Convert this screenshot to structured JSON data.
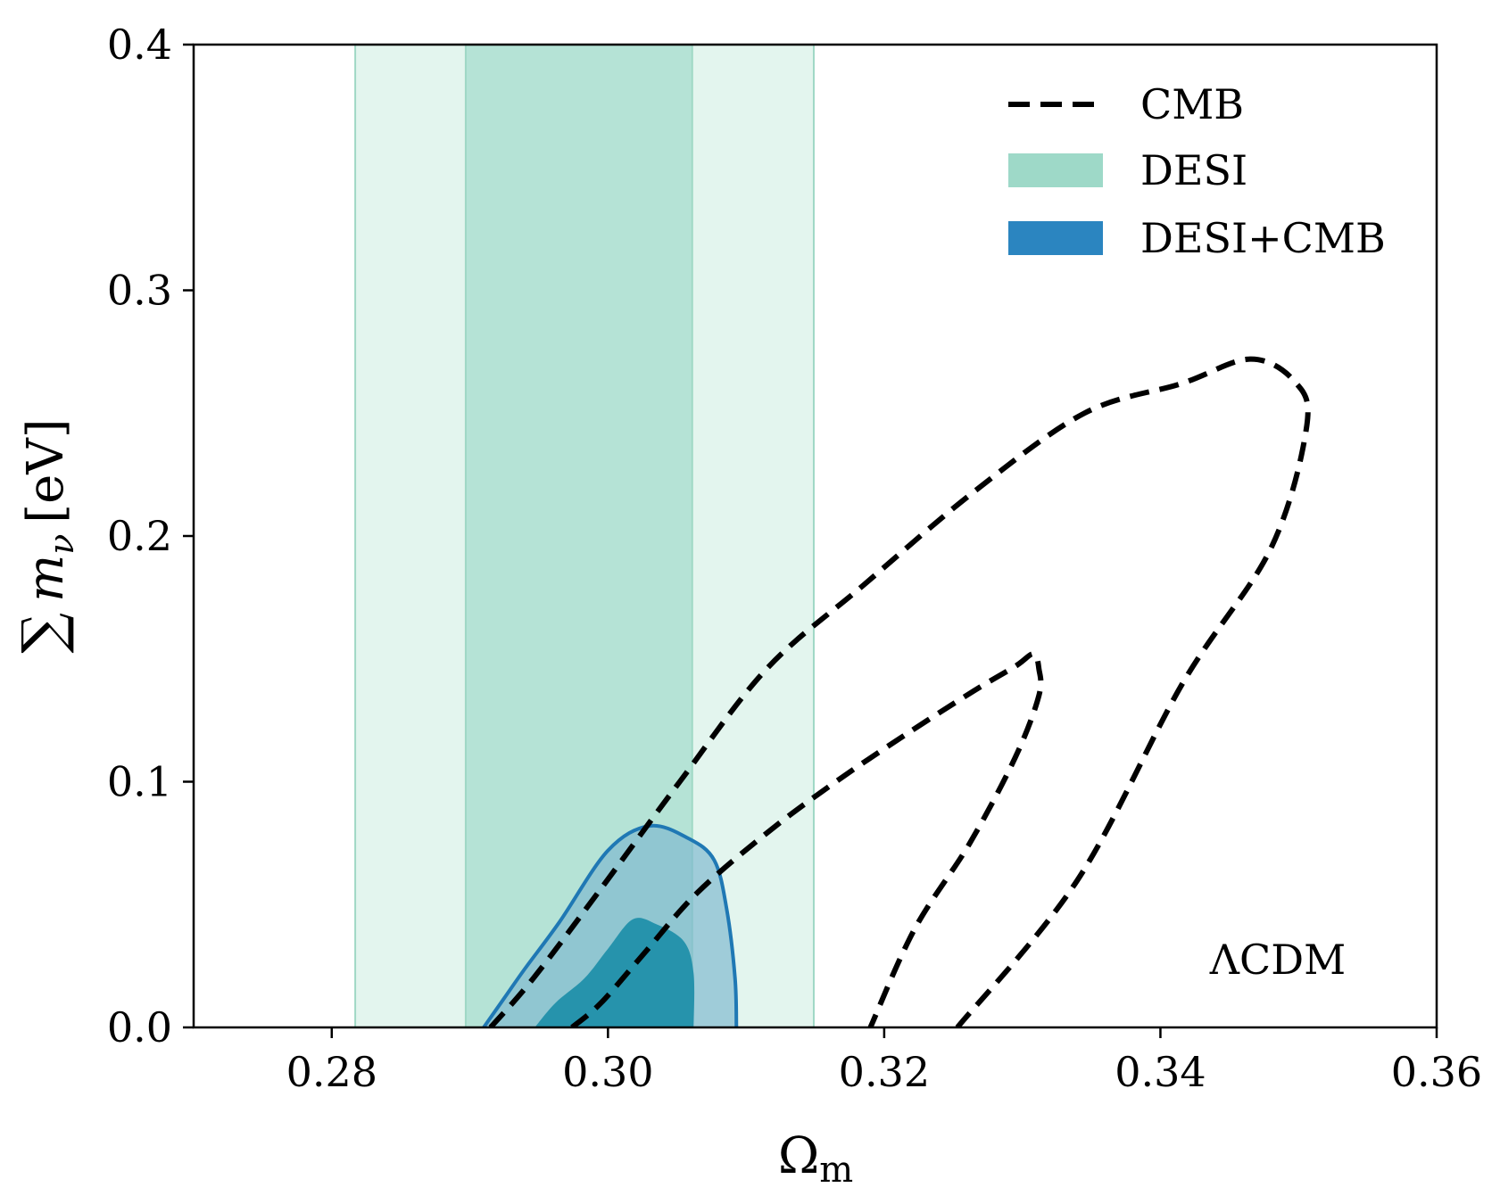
{
  "chart_data": {
    "type": "contour",
    "title": "",
    "xlabel": "Ωm",
    "xlabel_parts": {
      "main": "Ω",
      "sub": "m"
    },
    "ylabel": "∑ mν [eV]",
    "ylabel_parts": {
      "sum": "∑",
      "m": "m",
      "nu": "ν",
      "unit": "[eV]"
    },
    "xlim": [
      0.27,
      0.36
    ],
    "ylim": [
      0.0,
      0.4
    ],
    "xticks": [
      0.28,
      0.3,
      0.32,
      0.34,
      0.36
    ],
    "xtick_labels": [
      "0.28",
      "0.30",
      "0.32",
      "0.34",
      "0.36"
    ],
    "yticks": [
      0.0,
      0.1,
      0.2,
      0.3,
      0.4
    ],
    "ytick_labels": [
      "0.0",
      "0.1",
      "0.2",
      "0.3",
      "0.4"
    ],
    "grid": false,
    "legend_position": "top-right",
    "annotation": "ΛCDM",
    "colors": {
      "desi_outer": "#e3f5ee",
      "desi_inner": "#b5e3d6",
      "desi_edge": "#9fd8c5",
      "desi_legend": "#9ed9c8",
      "combo_outer": "#7fb8cf",
      "combo_inner": "#1d8ea8",
      "combo_edge": "#1f78b4",
      "combo_legend": "#2b85c0",
      "cmb_line": "#000000"
    },
    "series": [
      {
        "name": "CMB",
        "style": "dashed",
        "contours": [
          {
            "level": "68%",
            "points": [
              [
                0.2974,
                0.0
              ],
              [
                0.2995,
                0.01
              ],
              [
                0.3026,
                0.03
              ],
              [
                0.3065,
                0.055
              ],
              [
                0.3117,
                0.08
              ],
              [
                0.3165,
                0.1
              ],
              [
                0.3215,
                0.119
              ],
              [
                0.3265,
                0.137
              ],
              [
                0.3295,
                0.147
              ],
              [
                0.3308,
                0.152
              ],
              [
                0.3312,
                0.146
              ],
              [
                0.3312,
                0.135
              ],
              [
                0.3295,
                0.11
              ],
              [
                0.3262,
                0.075
              ],
              [
                0.3222,
                0.04
              ],
              [
                0.319,
                0.0
              ]
            ]
          },
          {
            "level": "95%",
            "points": [
              [
                0.2915,
                0.0
              ],
              [
                0.2946,
                0.02
              ],
              [
                0.2993,
                0.055
              ],
              [
                0.3052,
                0.1
              ],
              [
                0.3115,
                0.146
              ],
              [
                0.3185,
                0.18
              ],
              [
                0.3265,
                0.218
              ],
              [
                0.3345,
                0.25
              ],
              [
                0.3415,
                0.262
              ],
              [
                0.3465,
                0.272
              ],
              [
                0.3497,
                0.263
              ],
              [
                0.3506,
                0.245
              ],
              [
                0.348,
                0.195
              ],
              [
                0.3416,
                0.14
              ],
              [
                0.334,
                0.06
              ],
              [
                0.3253,
                0.0
              ]
            ]
          }
        ]
      },
      {
        "name": "DESI",
        "style": "band",
        "inner_band": [
          0.2897,
          0.3061
        ],
        "outer_band": [
          0.2817,
          0.3149
        ]
      },
      {
        "name": "DESI+CMB",
        "style": "filled",
        "contours": [
          {
            "level": "68%",
            "points": [
              [
                0.2947,
                0.0
              ],
              [
                0.2962,
                0.01
              ],
              [
                0.2983,
                0.02
              ],
              [
                0.3,
                0.032
              ],
              [
                0.3018,
                0.044
              ],
              [
                0.3035,
                0.042
              ],
              [
                0.3055,
                0.035
              ],
              [
                0.3062,
                0.022
              ],
              [
                0.3062,
                0.0
              ]
            ]
          },
          {
            "level": "95%",
            "points": [
              [
                0.291,
                0.0
              ],
              [
                0.2925,
                0.012
              ],
              [
                0.294,
                0.024
              ],
              [
                0.2965,
                0.043
              ],
              [
                0.3,
                0.072
              ],
              [
                0.303,
                0.082
              ],
              [
                0.3058,
                0.077
              ],
              [
                0.3077,
                0.068
              ],
              [
                0.3086,
                0.048
              ],
              [
                0.3092,
                0.02
              ],
              [
                0.3093,
                0.0
              ]
            ]
          }
        ]
      }
    ],
    "legend": [
      {
        "label": "CMB",
        "style": "dashed"
      },
      {
        "label": "DESI",
        "style": "fill"
      },
      {
        "label": "DESI+CMB",
        "style": "fill"
      }
    ]
  }
}
